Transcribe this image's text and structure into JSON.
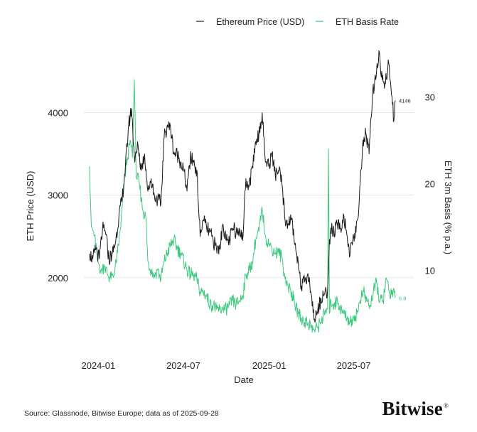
{
  "chart_data": {
    "type": "line",
    "dual_axis": true,
    "title": "",
    "xlabel": "Date",
    "ylabel_left": "ETH Price (USD)",
    "ylabel_right": "ETH 3m Basis (% p.a.)",
    "x_ticks": [
      "2024-01",
      "2024-07",
      "2025-01",
      "2025-07"
    ],
    "y_left_ticks": [
      2000,
      3000,
      4000
    ],
    "y_right_ticks": [
      10,
      20,
      30
    ],
    "y_left_range": [
      1250,
      4400
    ],
    "y_right_range": [
      2,
      32
    ],
    "x_range": [
      "2023-12-01",
      "2025-09-28"
    ],
    "grid": true,
    "legend_position": "top-right",
    "series": [
      {
        "name": "Ethereum Price (USD)",
        "axis": "left",
        "color": "#1a1a1a",
        "end_label": "4146",
        "points": [
          [
            "2023-12-13",
            2290
          ],
          [
            "2023-12-20",
            2230
          ],
          [
            "2023-12-27",
            2350
          ],
          [
            "2024-01-03",
            2230
          ],
          [
            "2024-01-10",
            2600
          ],
          [
            "2024-01-17",
            2520
          ],
          [
            "2024-01-24",
            2220
          ],
          [
            "2024-01-31",
            2300
          ],
          [
            "2024-02-07",
            2430
          ],
          [
            "2024-02-14",
            2750
          ],
          [
            "2024-02-21",
            2950
          ],
          [
            "2024-02-28",
            3350
          ],
          [
            "2024-03-06",
            3850
          ],
          [
            "2024-03-12",
            4050
          ],
          [
            "2024-03-19",
            3400
          ],
          [
            "2024-03-26",
            3600
          ],
          [
            "2024-04-02",
            3300
          ],
          [
            "2024-04-09",
            3500
          ],
          [
            "2024-04-16",
            3050
          ],
          [
            "2024-04-23",
            3200
          ],
          [
            "2024-04-30",
            3000
          ],
          [
            "2024-05-07",
            2950
          ],
          [
            "2024-05-14",
            2900
          ],
          [
            "2024-05-21",
            3700
          ],
          [
            "2024-05-28",
            3850
          ],
          [
            "2024-06-04",
            3800
          ],
          [
            "2024-06-11",
            3500
          ],
          [
            "2024-06-18",
            3500
          ],
          [
            "2024-06-25",
            3400
          ],
          [
            "2024-07-02",
            3300
          ],
          [
            "2024-07-09",
            3050
          ],
          [
            "2024-07-16",
            3450
          ],
          [
            "2024-07-23",
            3400
          ],
          [
            "2024-07-30",
            3300
          ],
          [
            "2024-08-06",
            2500
          ],
          [
            "2024-08-13",
            2700
          ],
          [
            "2024-08-20",
            2600
          ],
          [
            "2024-08-27",
            2550
          ],
          [
            "2024-09-03",
            2450
          ],
          [
            "2024-09-10",
            2350
          ],
          [
            "2024-09-17",
            2350
          ],
          [
            "2024-09-24",
            2650
          ],
          [
            "2024-10-01",
            2450
          ],
          [
            "2024-10-08",
            2450
          ],
          [
            "2024-10-15",
            2600
          ],
          [
            "2024-10-22",
            2550
          ],
          [
            "2024-10-29",
            2600
          ],
          [
            "2024-11-05",
            2450
          ],
          [
            "2024-11-12",
            3200
          ],
          [
            "2024-11-19",
            3100
          ],
          [
            "2024-11-26",
            3350
          ],
          [
            "2024-12-03",
            3650
          ],
          [
            "2024-12-10",
            3750
          ],
          [
            "2024-12-17",
            4000
          ],
          [
            "2024-12-24",
            3400
          ],
          [
            "2024-12-31",
            3350
          ],
          [
            "2025-01-07",
            3500
          ],
          [
            "2025-01-14",
            3250
          ],
          [
            "2025-01-21",
            3300
          ],
          [
            "2025-01-28",
            3150
          ],
          [
            "2025-02-04",
            2700
          ],
          [
            "2025-02-11",
            2650
          ],
          [
            "2025-02-18",
            2700
          ],
          [
            "2025-02-25",
            2400
          ],
          [
            "2025-03-04",
            2200
          ],
          [
            "2025-03-11",
            1900
          ],
          [
            "2025-03-18",
            1950
          ],
          [
            "2025-03-25",
            2050
          ],
          [
            "2025-04-01",
            1800
          ],
          [
            "2025-04-08",
            1500
          ],
          [
            "2025-04-15",
            1600
          ],
          [
            "2025-04-22",
            1750
          ],
          [
            "2025-04-29",
            1800
          ],
          [
            "2025-05-06",
            1850
          ],
          [
            "2025-05-09",
            2300
          ],
          [
            "2025-05-13",
            2600
          ],
          [
            "2025-05-20",
            2550
          ],
          [
            "2025-05-27",
            2650
          ],
          [
            "2025-06-03",
            2600
          ],
          [
            "2025-06-10",
            2750
          ],
          [
            "2025-06-17",
            2500
          ],
          [
            "2025-06-22",
            2250
          ],
          [
            "2025-06-29",
            2450
          ],
          [
            "2025-07-06",
            2550
          ],
          [
            "2025-07-13",
            2950
          ],
          [
            "2025-07-20",
            3600
          ],
          [
            "2025-07-27",
            3750
          ],
          [
            "2025-08-03",
            3500
          ],
          [
            "2025-08-10",
            4200
          ],
          [
            "2025-08-17",
            4400
          ],
          [
            "2025-08-24",
            4750
          ],
          [
            "2025-08-31",
            4400
          ],
          [
            "2025-09-07",
            4350
          ],
          [
            "2025-09-14",
            4600
          ],
          [
            "2025-09-21",
            4200
          ],
          [
            "2025-09-25",
            3900
          ],
          [
            "2025-09-28",
            4146
          ]
        ]
      },
      {
        "name": "ETH Basis Rate",
        "axis": "right",
        "color": "#3ec97f",
        "end_label": "6.8",
        "points": [
          [
            "2023-12-13",
            22
          ],
          [
            "2023-12-17",
            15
          ],
          [
            "2023-12-24",
            14
          ],
          [
            "2023-12-31",
            11
          ],
          [
            "2024-01-07",
            10
          ],
          [
            "2024-01-14",
            10.5
          ],
          [
            "2024-01-21",
            9.5
          ],
          [
            "2024-01-28",
            9
          ],
          [
            "2024-02-04",
            9.5
          ],
          [
            "2024-02-11",
            12
          ],
          [
            "2024-02-18",
            15
          ],
          [
            "2024-02-25",
            20
          ],
          [
            "2024-03-03",
            23
          ],
          [
            "2024-03-10",
            25
          ],
          [
            "2024-03-14",
            23
          ],
          [
            "2024-03-18",
            32
          ],
          [
            "2024-03-22",
            21
          ],
          [
            "2024-03-29",
            20
          ],
          [
            "2024-04-05",
            17
          ],
          [
            "2024-04-12",
            16
          ],
          [
            "2024-04-16",
            11
          ],
          [
            "2024-04-23",
            10
          ],
          [
            "2024-04-30",
            9.5
          ],
          [
            "2024-05-07",
            10
          ],
          [
            "2024-05-14",
            9
          ],
          [
            "2024-05-21",
            11
          ],
          [
            "2024-05-28",
            12
          ],
          [
            "2024-06-04",
            13
          ],
          [
            "2024-06-11",
            13.5
          ],
          [
            "2024-06-18",
            12.5
          ],
          [
            "2024-06-25",
            12
          ],
          [
            "2024-07-02",
            11
          ],
          [
            "2024-07-09",
            10
          ],
          [
            "2024-07-16",
            9.5
          ],
          [
            "2024-07-23",
            9.5
          ],
          [
            "2024-07-30",
            9
          ],
          [
            "2024-08-06",
            7.5
          ],
          [
            "2024-08-13",
            7.5
          ],
          [
            "2024-08-20",
            7
          ],
          [
            "2024-08-27",
            6
          ],
          [
            "2024-09-03",
            6
          ],
          [
            "2024-09-10",
            5.5
          ],
          [
            "2024-09-17",
            5.5
          ],
          [
            "2024-09-24",
            5.5
          ],
          [
            "2024-10-01",
            5.5
          ],
          [
            "2024-10-08",
            6
          ],
          [
            "2024-10-15",
            6.5
          ],
          [
            "2024-10-22",
            6
          ],
          [
            "2024-10-29",
            6.5
          ],
          [
            "2024-11-05",
            7
          ],
          [
            "2024-11-12",
            9.5
          ],
          [
            "2024-11-19",
            10
          ],
          [
            "2024-11-26",
            11
          ],
          [
            "2024-12-03",
            13.5
          ],
          [
            "2024-12-10",
            14.5
          ],
          [
            "2024-12-17",
            17
          ],
          [
            "2024-12-24",
            14
          ],
          [
            "2024-12-31",
            13
          ],
          [
            "2025-01-07",
            12.5
          ],
          [
            "2025-01-14",
            12
          ],
          [
            "2025-01-21",
            12
          ],
          [
            "2025-01-28",
            11.5
          ],
          [
            "2025-02-04",
            9
          ],
          [
            "2025-02-11",
            8
          ],
          [
            "2025-02-18",
            7.5
          ],
          [
            "2025-02-25",
            6
          ],
          [
            "2025-03-04",
            5
          ],
          [
            "2025-03-11",
            4.5
          ],
          [
            "2025-03-18",
            4
          ],
          [
            "2025-03-25",
            4
          ],
          [
            "2025-04-01",
            3.5
          ],
          [
            "2025-04-08",
            3
          ],
          [
            "2025-04-15",
            3.5
          ],
          [
            "2025-04-22",
            4
          ],
          [
            "2025-04-29",
            5
          ],
          [
            "2025-05-06",
            5.5
          ],
          [
            "2025-05-08",
            24
          ],
          [
            "2025-05-10",
            5
          ],
          [
            "2025-05-13",
            6.5
          ],
          [
            "2025-05-20",
            6
          ],
          [
            "2025-05-27",
            6.5
          ],
          [
            "2025-06-03",
            5.5
          ],
          [
            "2025-06-10",
            5
          ],
          [
            "2025-06-17",
            4.5
          ],
          [
            "2025-06-24",
            4
          ],
          [
            "2025-07-01",
            4.5
          ],
          [
            "2025-07-08",
            5
          ],
          [
            "2025-07-15",
            6.5
          ],
          [
            "2025-07-22",
            7.5
          ],
          [
            "2025-07-29",
            6.5
          ],
          [
            "2025-08-05",
            6
          ],
          [
            "2025-08-12",
            7.5
          ],
          [
            "2025-08-19",
            8.5
          ],
          [
            "2025-08-26",
            6.5
          ],
          [
            "2025-09-02",
            6.5
          ],
          [
            "2025-09-09",
            9
          ],
          [
            "2025-09-16",
            7.5
          ],
          [
            "2025-09-23",
            7.5
          ],
          [
            "2025-09-28",
            6.8
          ]
        ]
      }
    ]
  },
  "footer": {
    "source": "Source: Glassnode, Bitwise Europe; data as of 2025-09-28",
    "brand": "Bitwise",
    "brand_mark": "®"
  }
}
